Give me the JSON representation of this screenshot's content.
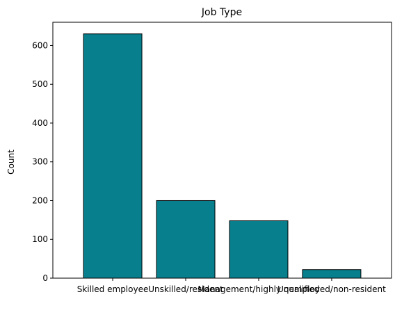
{
  "chart_data": {
    "type": "bar",
    "title": "Job Type",
    "xlabel": "",
    "ylabel": "Count",
    "categories": [
      "Skilled employee",
      "Unskilled/resident",
      "Management/highly qualified",
      "Unemployed/non-resident"
    ],
    "values": [
      630,
      200,
      148,
      22
    ],
    "ylim": [
      0,
      660
    ],
    "yticks": [
      0,
      100,
      200,
      300,
      400,
      500,
      600
    ],
    "grid": false,
    "colors": {
      "bar_fill": "#087f8c",
      "bar_edge": "#000000"
    }
  }
}
